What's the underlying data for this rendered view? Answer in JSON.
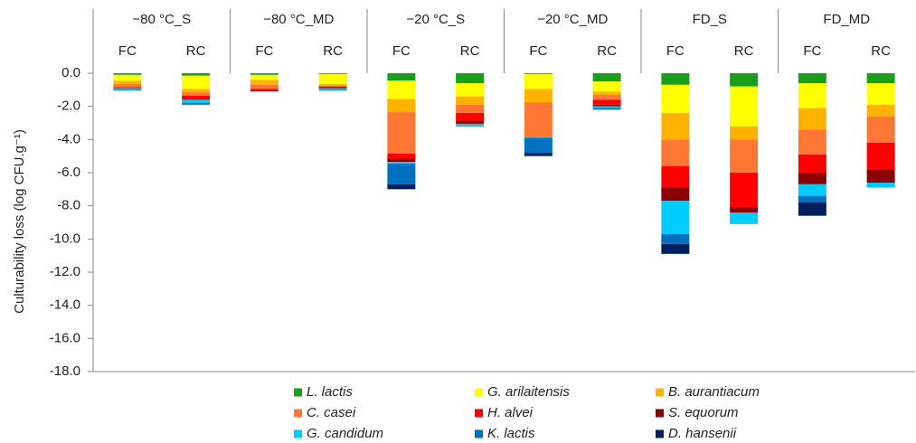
{
  "chart_data": {
    "type": "bar",
    "stacked": true,
    "y_label": "Culturability loss (log CFU.g⁻¹)",
    "groups": [
      "−80 °C_S",
      "−80 °C_MD",
      "−20 °C_S",
      "−20 °C_MD",
      "FD_S",
      "FD_MD"
    ],
    "categories": [
      "FC",
      "RC",
      "FC",
      "RC",
      "FC",
      "RC",
      "FC",
      "RC",
      "FC",
      "RC",
      "FC",
      "RC"
    ],
    "ylim": [
      0,
      -18
    ],
    "yticks": [
      {
        "value": 0,
        "label": "0.0"
      },
      {
        "value": -2,
        "label": "-2.0"
      },
      {
        "value": -4,
        "label": "-4.0"
      },
      {
        "value": -6,
        "label": "-6.0"
      },
      {
        "value": -8,
        "label": "-8.0"
      },
      {
        "value": -10,
        "label": "-10.0"
      },
      {
        "value": -12,
        "label": "-12.0"
      },
      {
        "value": -14,
        "label": "-14.0"
      },
      {
        "value": -16,
        "label": "-16.0"
      },
      {
        "value": -18,
        "label": "-18.0"
      }
    ],
    "series": [
      {
        "name": "L. lactis",
        "color": "#1a9f1a",
        "values": [
          -0.1,
          -0.15,
          -0.1,
          -0.05,
          -0.45,
          -0.6,
          -0.05,
          -0.5,
          -0.7,
          -0.8,
          -0.6,
          -0.6
        ]
      },
      {
        "name": "G.  arilaitensis",
        "color": "#ffff00",
        "values": [
          -0.35,
          -0.8,
          -0.3,
          -0.6,
          -1.1,
          -0.8,
          -0.9,
          -0.6,
          -1.7,
          -2.4,
          -1.5,
          -1.3
        ]
      },
      {
        "name": "B. aurantiacum",
        "color": "#ffb300",
        "values": [
          -0.2,
          -0.2,
          -0.3,
          -0.1,
          -0.8,
          -0.5,
          -0.8,
          -0.2,
          -1.6,
          -0.8,
          -1.3,
          -0.7
        ]
      },
      {
        "name": "C. casei",
        "color": "#ff7733",
        "values": [
          -0.2,
          -0.2,
          -0.25,
          -0.05,
          -2.5,
          -0.5,
          -2.1,
          -0.3,
          -1.6,
          -2.0,
          -1.5,
          -1.6
        ]
      },
      {
        "name": "H. alvei",
        "color": "#ff0000",
        "values": [
          -0.05,
          -0.2,
          -0.1,
          -0.05,
          -0.3,
          -0.45,
          0,
          -0.3,
          -1.3,
          -2.1,
          -1.1,
          -1.6
        ]
      },
      {
        "name": "S. equorum",
        "color": "#8b0000",
        "values": [
          0,
          -0.05,
          -0.05,
          -0.05,
          -0.2,
          -0.2,
          0,
          -0.1,
          -0.8,
          -0.3,
          -0.7,
          -0.8
        ]
      },
      {
        "name": "G. candidum",
        "color": "#00ccff",
        "values": [
          -0.1,
          -0.2,
          0,
          -0.1,
          -0.1,
          -0.1,
          -0.05,
          -0.1,
          -2.0,
          -0.7,
          -0.7,
          -0.3
        ]
      },
      {
        "name": "K. lactis",
        "color": "#0070c0",
        "values": [
          -0.05,
          -0.1,
          0,
          -0.05,
          -1.25,
          -0.05,
          -0.9,
          -0.1,
          -0.6,
          0,
          -0.4,
          0
        ]
      },
      {
        "name": "D. hansenii",
        "color": "#002060",
        "values": [
          0,
          0,
          0,
          0,
          -0.3,
          0,
          -0.2,
          0,
          -0.6,
          0,
          -0.8,
          0
        ]
      }
    ]
  }
}
